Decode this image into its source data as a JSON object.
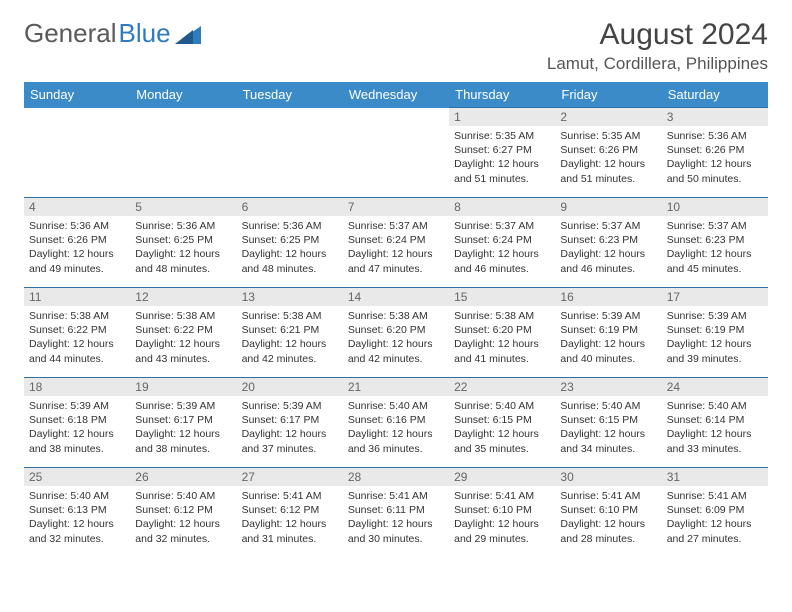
{
  "brand": {
    "part1": "General",
    "part2": "Blue"
  },
  "title": "August 2024",
  "location": "Lamut, Cordillera, Philippines",
  "colors": {
    "header_bg": "#3b8bc9",
    "header_text": "#ffffff",
    "daynum_bg": "#e9e9e9",
    "row_border": "#2f6fa5",
    "brand_gray": "#5a5a5a",
    "brand_blue": "#2f7bbb",
    "body_text": "#333333"
  },
  "day_headers": [
    "Sunday",
    "Monday",
    "Tuesday",
    "Wednesday",
    "Thursday",
    "Friday",
    "Saturday"
  ],
  "weeks": [
    [
      null,
      null,
      null,
      null,
      {
        "n": "1",
        "sr": "5:35 AM",
        "ss": "6:27 PM",
        "dl": "12 hours and 51 minutes."
      },
      {
        "n": "2",
        "sr": "5:35 AM",
        "ss": "6:26 PM",
        "dl": "12 hours and 51 minutes."
      },
      {
        "n": "3",
        "sr": "5:36 AM",
        "ss": "6:26 PM",
        "dl": "12 hours and 50 minutes."
      }
    ],
    [
      {
        "n": "4",
        "sr": "5:36 AM",
        "ss": "6:26 PM",
        "dl": "12 hours and 49 minutes."
      },
      {
        "n": "5",
        "sr": "5:36 AM",
        "ss": "6:25 PM",
        "dl": "12 hours and 48 minutes."
      },
      {
        "n": "6",
        "sr": "5:36 AM",
        "ss": "6:25 PM",
        "dl": "12 hours and 48 minutes."
      },
      {
        "n": "7",
        "sr": "5:37 AM",
        "ss": "6:24 PM",
        "dl": "12 hours and 47 minutes."
      },
      {
        "n": "8",
        "sr": "5:37 AM",
        "ss": "6:24 PM",
        "dl": "12 hours and 46 minutes."
      },
      {
        "n": "9",
        "sr": "5:37 AM",
        "ss": "6:23 PM",
        "dl": "12 hours and 46 minutes."
      },
      {
        "n": "10",
        "sr": "5:37 AM",
        "ss": "6:23 PM",
        "dl": "12 hours and 45 minutes."
      }
    ],
    [
      {
        "n": "11",
        "sr": "5:38 AM",
        "ss": "6:22 PM",
        "dl": "12 hours and 44 minutes."
      },
      {
        "n": "12",
        "sr": "5:38 AM",
        "ss": "6:22 PM",
        "dl": "12 hours and 43 minutes."
      },
      {
        "n": "13",
        "sr": "5:38 AM",
        "ss": "6:21 PM",
        "dl": "12 hours and 42 minutes."
      },
      {
        "n": "14",
        "sr": "5:38 AM",
        "ss": "6:20 PM",
        "dl": "12 hours and 42 minutes."
      },
      {
        "n": "15",
        "sr": "5:38 AM",
        "ss": "6:20 PM",
        "dl": "12 hours and 41 minutes."
      },
      {
        "n": "16",
        "sr": "5:39 AM",
        "ss": "6:19 PM",
        "dl": "12 hours and 40 minutes."
      },
      {
        "n": "17",
        "sr": "5:39 AM",
        "ss": "6:19 PM",
        "dl": "12 hours and 39 minutes."
      }
    ],
    [
      {
        "n": "18",
        "sr": "5:39 AM",
        "ss": "6:18 PM",
        "dl": "12 hours and 38 minutes."
      },
      {
        "n": "19",
        "sr": "5:39 AM",
        "ss": "6:17 PM",
        "dl": "12 hours and 38 minutes."
      },
      {
        "n": "20",
        "sr": "5:39 AM",
        "ss": "6:17 PM",
        "dl": "12 hours and 37 minutes."
      },
      {
        "n": "21",
        "sr": "5:40 AM",
        "ss": "6:16 PM",
        "dl": "12 hours and 36 minutes."
      },
      {
        "n": "22",
        "sr": "5:40 AM",
        "ss": "6:15 PM",
        "dl": "12 hours and 35 minutes."
      },
      {
        "n": "23",
        "sr": "5:40 AM",
        "ss": "6:15 PM",
        "dl": "12 hours and 34 minutes."
      },
      {
        "n": "24",
        "sr": "5:40 AM",
        "ss": "6:14 PM",
        "dl": "12 hours and 33 minutes."
      }
    ],
    [
      {
        "n": "25",
        "sr": "5:40 AM",
        "ss": "6:13 PM",
        "dl": "12 hours and 32 minutes."
      },
      {
        "n": "26",
        "sr": "5:40 AM",
        "ss": "6:12 PM",
        "dl": "12 hours and 32 minutes."
      },
      {
        "n": "27",
        "sr": "5:41 AM",
        "ss": "6:12 PM",
        "dl": "12 hours and 31 minutes."
      },
      {
        "n": "28",
        "sr": "5:41 AM",
        "ss": "6:11 PM",
        "dl": "12 hours and 30 minutes."
      },
      {
        "n": "29",
        "sr": "5:41 AM",
        "ss": "6:10 PM",
        "dl": "12 hours and 29 minutes."
      },
      {
        "n": "30",
        "sr": "5:41 AM",
        "ss": "6:10 PM",
        "dl": "12 hours and 28 minutes."
      },
      {
        "n": "31",
        "sr": "5:41 AM",
        "ss": "6:09 PM",
        "dl": "12 hours and 27 minutes."
      }
    ]
  ],
  "labels": {
    "sunrise": "Sunrise:",
    "sunset": "Sunset:",
    "daylight": "Daylight:"
  }
}
